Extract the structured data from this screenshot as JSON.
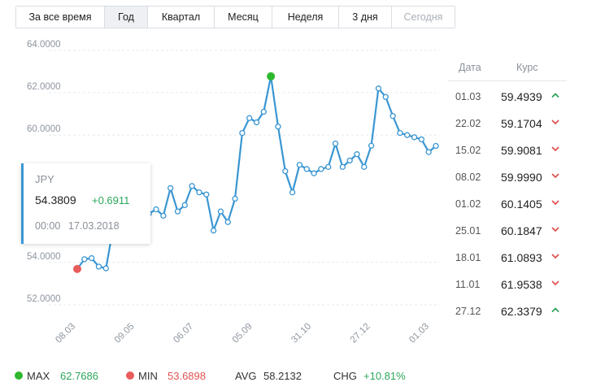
{
  "periods": [
    {
      "label": "За все время",
      "active": false,
      "disabled": false,
      "width": 109
    },
    {
      "label": "Год",
      "active": true,
      "disabled": false,
      "width": 53
    },
    {
      "label": "Квартал",
      "active": false,
      "disabled": false,
      "width": 82
    },
    {
      "label": "Месяц",
      "active": false,
      "disabled": false,
      "width": 71
    },
    {
      "label": "Неделя",
      "active": false,
      "disabled": false,
      "width": 82
    },
    {
      "label": "3 дня",
      "active": false,
      "disabled": false,
      "width": 65
    },
    {
      "label": "Сегодня",
      "active": false,
      "disabled": true,
      "width": 77
    }
  ],
  "chart_data": {
    "type": "line",
    "ylim": [
      51.5,
      64.3
    ],
    "yticks": [
      {
        "value": 52,
        "label": "52.0000"
      },
      {
        "value": 54,
        "label": "54.0000"
      },
      {
        "value": 60,
        "label": "60.0000"
      },
      {
        "value": 62,
        "label": "62.0000"
      },
      {
        "value": 64,
        "label": "64.0000"
      }
    ],
    "xticks": [
      "08.03",
      "09.05",
      "06.07",
      "05.09",
      "31.10",
      "27.12",
      "01.03"
    ],
    "grid": true,
    "color": "#3a96d2",
    "values": [
      53.69,
      54.15,
      54.2,
      53.8,
      53.72,
      55.6,
      56.1,
      56.5,
      56.2,
      55.8,
      56.3,
      56.5,
      56.2,
      57.5,
      56.4,
      56.7,
      57.6,
      57.3,
      57.2,
      55.5,
      56.4,
      55.9,
      57.0,
      60.1,
      60.8,
      60.6,
      61.1,
      62.77,
      60.4,
      58.3,
      57.3,
      58.6,
      58.4,
      58.2,
      58.4,
      58.5,
      59.6,
      58.5,
      58.8,
      59.1,
      58.5,
      59.5,
      62.2,
      61.8,
      60.9,
      60.1,
      60.0,
      59.9,
      59.8,
      59.2,
      59.49
    ],
    "max_index": 27,
    "min_index": 0
  },
  "tooltip": {
    "name": "JPY",
    "value": "54.3809",
    "change": "+0.6911",
    "time": "00:00",
    "date": "17.03.2018"
  },
  "table": {
    "header_date": "Дата",
    "header_rate": "Курс",
    "rows": [
      {
        "date": "01.03",
        "rate": "59.4939",
        "dir": "up"
      },
      {
        "date": "22.02",
        "rate": "59.1704",
        "dir": "down"
      },
      {
        "date": "15.02",
        "rate": "59.9081",
        "dir": "down"
      },
      {
        "date": "08.02",
        "rate": "59.9990",
        "dir": "down"
      },
      {
        "date": "01.02",
        "rate": "60.1405",
        "dir": "down"
      },
      {
        "date": "25.01",
        "rate": "60.1847",
        "dir": "down"
      },
      {
        "date": "18.01",
        "rate": "61.0893",
        "dir": "down"
      },
      {
        "date": "11.01",
        "rate": "61.9538",
        "dir": "down"
      },
      {
        "date": "27.12",
        "rate": "62.3379",
        "dir": "up"
      }
    ]
  },
  "stats": {
    "max_label": "MAX",
    "max_value": "62.7686",
    "min_label": "MIN",
    "min_value": "53.6898",
    "avg_label": "AVG",
    "avg_value": "58.2132",
    "chg_label": "CHG",
    "chg_value": "+10.81%"
  },
  "colors": {
    "line": "#3a96d2",
    "up": "#2ca55a",
    "down": "#e05252",
    "max_dot": "#2eb82e",
    "min_dot": "#e85c5c"
  }
}
